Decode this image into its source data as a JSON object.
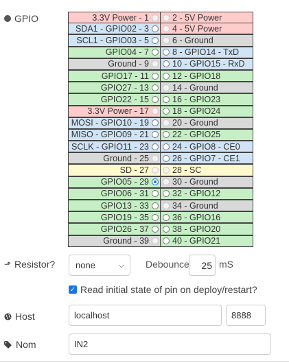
{
  "gpio_label": "GPIO",
  "pins": [
    {
      "left": "3.3V Power - 1",
      "lc": "power",
      "lr": "disabled",
      "right": "2 - 5V Power",
      "rc": "power",
      "rr": "disabled"
    },
    {
      "left": "SDA1 - GPIO02 - 3",
      "lc": "i2c",
      "lr": "normal",
      "right": "4 - 5V Power",
      "rc": "power",
      "rr": "disabled"
    },
    {
      "left": "SCL1 - GPIO03 - 5",
      "lc": "i2c",
      "lr": "normal",
      "right": "6 - Ground",
      "rc": "ground",
      "rr": "disabled"
    },
    {
      "left": "GPIO04 - 7",
      "lc": "gpio",
      "lr": "normal",
      "right": "8 - GPIO14 - TxD",
      "rc": "i2c",
      "rr": "normal"
    },
    {
      "left": "Ground - 9",
      "lc": "ground",
      "lr": "disabled",
      "right": "10 - GPIO15 - RxD",
      "rc": "i2c",
      "rr": "normal"
    },
    {
      "left": "GPIO17 - 11",
      "lc": "gpio",
      "lr": "normal",
      "right": "12 - GPIO18",
      "rc": "gpio",
      "rr": "normal"
    },
    {
      "left": "GPIO27 - 13",
      "lc": "gpio",
      "lr": "normal",
      "right": "14 - Ground",
      "rc": "ground",
      "rr": "disabled"
    },
    {
      "left": "GPIO22 - 15",
      "lc": "gpio",
      "lr": "normal",
      "right": "16 - GPIO23",
      "rc": "gpio",
      "rr": "normal"
    },
    {
      "left": "3.3V Power - 17",
      "lc": "power",
      "lr": "disabled",
      "right": "18 - GPIO24",
      "rc": "gpio",
      "rr": "normal"
    },
    {
      "left": "MOSI - GPIO10 - 19",
      "lc": "spi",
      "lr": "normal",
      "right": "20 - Ground",
      "rc": "ground",
      "rr": "disabled"
    },
    {
      "left": "MISO - GPIO09 - 21",
      "lc": "spi",
      "lr": "normal",
      "right": "22 - GPIO25",
      "rc": "gpio",
      "rr": "normal"
    },
    {
      "left": "SCLK - GPIO11 - 23",
      "lc": "spi",
      "lr": "normal",
      "right": "24 - GPIO8 - CE0",
      "rc": "spi",
      "rr": "normal"
    },
    {
      "left": "Ground - 25",
      "lc": "ground",
      "lr": "disabled",
      "right": "26 - GPIO7 - CE1",
      "rc": "spi",
      "rr": "normal"
    },
    {
      "left": "SD - 27",
      "lc": "sd",
      "lr": "disabled",
      "right": "28 - SC",
      "rc": "sd",
      "rr": "disabled"
    },
    {
      "left": "GPIO05 - 29",
      "lc": "gpio",
      "lr": "checked",
      "right": "30 - Ground",
      "rc": "ground",
      "rr": "disabled"
    },
    {
      "left": "GPIO06 - 31",
      "lc": "gpio",
      "lr": "normal",
      "right": "32 - GPIO12",
      "rc": "gpio",
      "rr": "normal"
    },
    {
      "left": "GPIO13 - 33",
      "lc": "gpio",
      "lr": "normal",
      "right": "34 - Ground",
      "rc": "ground",
      "rr": "disabled"
    },
    {
      "left": "GPIO19 - 35",
      "lc": "gpio",
      "lr": "normal",
      "right": "36 - GPIO16",
      "rc": "gpio",
      "rr": "normal"
    },
    {
      "left": "GPIO26 - 37",
      "lc": "gpio",
      "lr": "normal",
      "right": "38 - GPIO20",
      "rc": "gpio",
      "rr": "normal"
    },
    {
      "left": "Ground - 39",
      "lc": "ground",
      "lr": "disabled",
      "right": "40 - GPIO21",
      "rc": "gpio",
      "rr": "normal"
    }
  ],
  "resistor": {
    "label": "Resistor?",
    "value": "none",
    "icon": "arrow-up-icon"
  },
  "debounce": {
    "label": "Debounce",
    "value": "25",
    "unit": "mS"
  },
  "read_initial": {
    "label": "Read initial state of pin on deploy/restart?",
    "checked": true
  },
  "host": {
    "label": "Host",
    "value": "localhost",
    "port": "8888",
    "icon": "globe-icon"
  },
  "name": {
    "label": "Nom",
    "value": "IN2",
    "icon": "tag-icon"
  },
  "colors": {
    "power": "#ffcccc",
    "i2c": "#d0e4f5",
    "gpio": "#c6efc6",
    "ground": "#d9d9d9",
    "sd": "#fffacd",
    "accent": "#1a73e8"
  }
}
